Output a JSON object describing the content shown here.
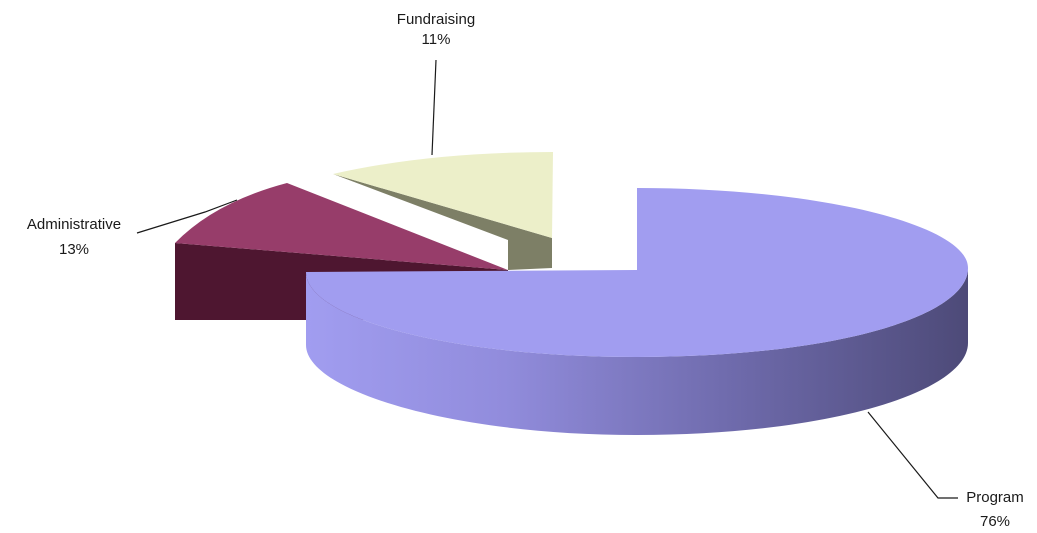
{
  "chart_data": {
    "type": "pie",
    "three_d": true,
    "exploded": true,
    "slices": [
      {
        "name": "Program",
        "value": 76,
        "label": "Program",
        "pct_label": "76%",
        "color_top": "#a19df0",
        "color_side_dark": "#4d4a78"
      },
      {
        "name": "Administrative",
        "value": 13,
        "label": "Administrative",
        "pct_label": "13%",
        "color_top": "#973d6a",
        "color_side_dark": "#4e1630"
      },
      {
        "name": "Fundraising",
        "value": 11,
        "label": "Fundraising",
        "pct_label": "11%",
        "color_top": "#ecefc9",
        "color_side_dark": "#7d7f66"
      }
    ]
  }
}
